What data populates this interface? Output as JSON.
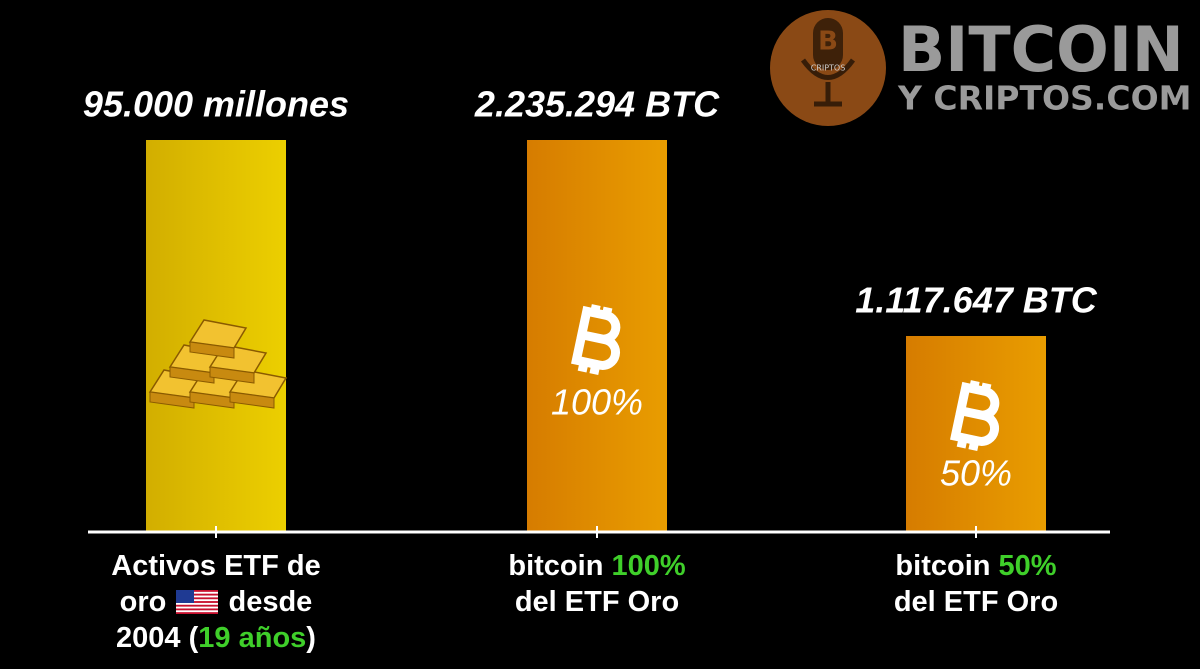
{
  "logo": {
    "title": "BITCOIN",
    "subtitle": "Y CRIPTOS.COM",
    "badge": "CRIPTOS"
  },
  "chart_data": {
    "type": "bar",
    "bar_titles": [
      "95.000 millones",
      "2.235.294 BTC",
      "1.117.647 BTC"
    ],
    "values": [
      100,
      100,
      50
    ],
    "value_labels": [
      null,
      "100%",
      "50%"
    ],
    "ylim": [
      0,
      100
    ],
    "colors": [
      [
        "#d2ae00",
        "#eccf00"
      ],
      [
        "#d67c00",
        "#e99d00"
      ],
      [
        "#d67c00",
        "#e99d00"
      ]
    ],
    "categories": [
      [
        {
          "text": "Activos ETF de oro"
        },
        {
          "text": "desde 2004 ("
        },
        {
          "text": "19 años",
          "color": "#3fcf2a"
        },
        {
          "text": ")"
        }
      ],
      [
        {
          "text": "bitcoin"
        },
        {
          "text": "100%",
          "color": "#3fcf2a"
        },
        {
          "text": "del ETF Oro"
        }
      ],
      [
        {
          "text": "bitcoin"
        },
        {
          "text": "50%",
          "color": "#3fcf2a"
        },
        {
          "text": "del ETF Oro"
        }
      ]
    ]
  }
}
